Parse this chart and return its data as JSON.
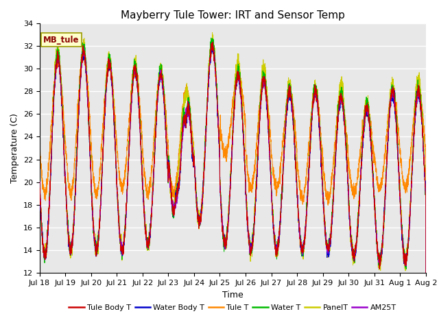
{
  "title": "Mayberry Tule Tower: IRT and Sensor Temp",
  "xlabel": "Time",
  "ylabel": "Temperature (C)",
  "ylim": [
    12,
    34
  ],
  "yticks": [
    12,
    14,
    16,
    18,
    20,
    22,
    24,
    26,
    28,
    30,
    32,
    34
  ],
  "legend_label": "MB_tule",
  "series_labels": [
    "Tule Body T",
    "Water Body T",
    "Tule T",
    "Water T",
    "PanelT",
    "AM25T"
  ],
  "series_colors": [
    "#cc0000",
    "#0000cc",
    "#ff8800",
    "#00bb00",
    "#cccc00",
    "#9900cc"
  ],
  "background_color": "#e8e8e8",
  "fig_facecolor": "#ffffff",
  "title_fontsize": 11,
  "axis_fontsize": 9,
  "tick_fontsize": 8,
  "grid_color": "#ffffff",
  "n_days": 15,
  "tick_labels": [
    "Jul 18",
    "Jul 19",
    "Jul 20",
    "Jul 21",
    "Jul 22",
    "Jul 23",
    "Jul 24",
    "Jul 25",
    "Jul 26",
    "Jul 27",
    "Jul 28",
    "Jul 29",
    "Jul 30",
    "Jul 31",
    "Aug 1",
    "Aug 2"
  ]
}
